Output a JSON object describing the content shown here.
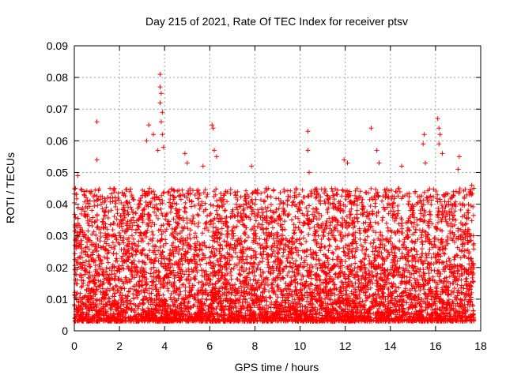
{
  "chart_data": {
    "type": "scatter",
    "title": "Day 215 of 2021, Rate Of TEC Index for receiver ptsv",
    "xlabel": "GPS time / hours",
    "ylabel": "ROTI / TECUs",
    "xlim": [
      0,
      18
    ],
    "ylim": [
      0,
      0.09
    ],
    "x_ticks": [
      "0",
      "2",
      "4",
      "6",
      "8",
      "10",
      "12",
      "14",
      "16",
      "18"
    ],
    "y_ticks": [
      "0",
      "0.01",
      "0.02",
      "0.03",
      "0.04",
      "0.05",
      "0.06",
      "0.07",
      "0.08",
      "0.09"
    ],
    "grid": true,
    "marker": "+",
    "series_color": "#ff0000",
    "series": [
      {
        "name": "ROTI",
        "x_range": [
          0,
          17.7
        ],
        "typical_band": [
          0.003,
          0.045
        ],
        "notable_points": [
          {
            "x": 0.05,
            "y": 0.045
          },
          {
            "x": 0.15,
            "y": 0.049
          },
          {
            "x": 0.45,
            "y": 0.044
          },
          {
            "x": 1.0,
            "y": 0.066
          },
          {
            "x": 1.0,
            "y": 0.054
          },
          {
            "x": 3.3,
            "y": 0.065
          },
          {
            "x": 3.2,
            "y": 0.06
          },
          {
            "x": 3.5,
            "y": 0.062
          },
          {
            "x": 3.8,
            "y": 0.081
          },
          {
            "x": 3.8,
            "y": 0.077
          },
          {
            "x": 3.85,
            "y": 0.075
          },
          {
            "x": 3.8,
            "y": 0.072
          },
          {
            "x": 3.9,
            "y": 0.069
          },
          {
            "x": 3.85,
            "y": 0.066
          },
          {
            "x": 3.9,
            "y": 0.062
          },
          {
            "x": 3.95,
            "y": 0.058
          },
          {
            "x": 3.7,
            "y": 0.057
          },
          {
            "x": 4.9,
            "y": 0.056
          },
          {
            "x": 5.0,
            "y": 0.053
          },
          {
            "x": 6.1,
            "y": 0.065
          },
          {
            "x": 6.15,
            "y": 0.064
          },
          {
            "x": 6.2,
            "y": 0.057
          },
          {
            "x": 6.3,
            "y": 0.055
          },
          {
            "x": 5.7,
            "y": 0.052
          },
          {
            "x": 7.85,
            "y": 0.052
          },
          {
            "x": 8.7,
            "y": 0.038
          },
          {
            "x": 10.35,
            "y": 0.063
          },
          {
            "x": 10.35,
            "y": 0.057
          },
          {
            "x": 10.4,
            "y": 0.05
          },
          {
            "x": 11.95,
            "y": 0.054
          },
          {
            "x": 12.1,
            "y": 0.053
          },
          {
            "x": 13.15,
            "y": 0.064
          },
          {
            "x": 13.4,
            "y": 0.057
          },
          {
            "x": 13.5,
            "y": 0.053
          },
          {
            "x": 14.5,
            "y": 0.052
          },
          {
            "x": 15.5,
            "y": 0.062
          },
          {
            "x": 15.45,
            "y": 0.059
          },
          {
            "x": 15.55,
            "y": 0.053
          },
          {
            "x": 16.1,
            "y": 0.067
          },
          {
            "x": 16.15,
            "y": 0.064
          },
          {
            "x": 16.2,
            "y": 0.062
          },
          {
            "x": 16.15,
            "y": 0.059
          },
          {
            "x": 16.3,
            "y": 0.056
          },
          {
            "x": 17.05,
            "y": 0.055
          },
          {
            "x": 17.0,
            "y": 0.051
          },
          {
            "x": 17.6,
            "y": 0.046
          },
          {
            "x": 17.7,
            "y": 0.045
          }
        ]
      }
    ]
  }
}
